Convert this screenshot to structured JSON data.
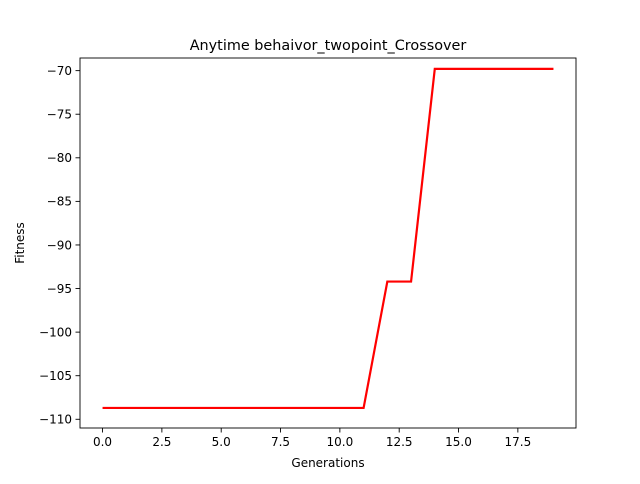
{
  "chart_data": {
    "type": "line",
    "title": "Anytime behaivor_twopoint_Crossover",
    "xlabel": "Generations",
    "ylabel": "Fitness",
    "xlim": [
      -0.95,
      19.95
    ],
    "ylim": [
      -111.0,
      -68.55
    ],
    "xticks": [
      0,
      2.5,
      5,
      7.5,
      10,
      12.5,
      15,
      17.5
    ],
    "xtick_labels": [
      "0.0",
      "2.5",
      "5.0",
      "7.5",
      "10.0",
      "12.5",
      "15.0",
      "17.5"
    ],
    "yticks": [
      -110,
      -105,
      -100,
      -95,
      -90,
      -85,
      -80,
      -75,
      -70
    ],
    "ytick_labels": [
      "−110",
      "−105",
      "−100",
      "−95",
      "−90",
      "−85",
      "−80",
      "−75",
      "−70"
    ],
    "grid": false,
    "legend": "none",
    "series": [
      {
        "color": "#ff0000",
        "x": [
          0,
          1,
          2,
          3,
          4,
          5,
          6,
          7,
          8,
          9,
          10,
          11,
          12,
          13,
          14,
          15,
          16,
          17,
          18,
          19
        ],
        "values": [
          -108.7,
          -108.7,
          -108.7,
          -108.7,
          -108.7,
          -108.7,
          -108.7,
          -108.7,
          -108.7,
          -108.7,
          -108.7,
          -108.7,
          -94.2,
          -94.2,
          -69.8,
          -69.8,
          -69.8,
          -69.8,
          -69.8,
          -69.8
        ]
      }
    ]
  }
}
